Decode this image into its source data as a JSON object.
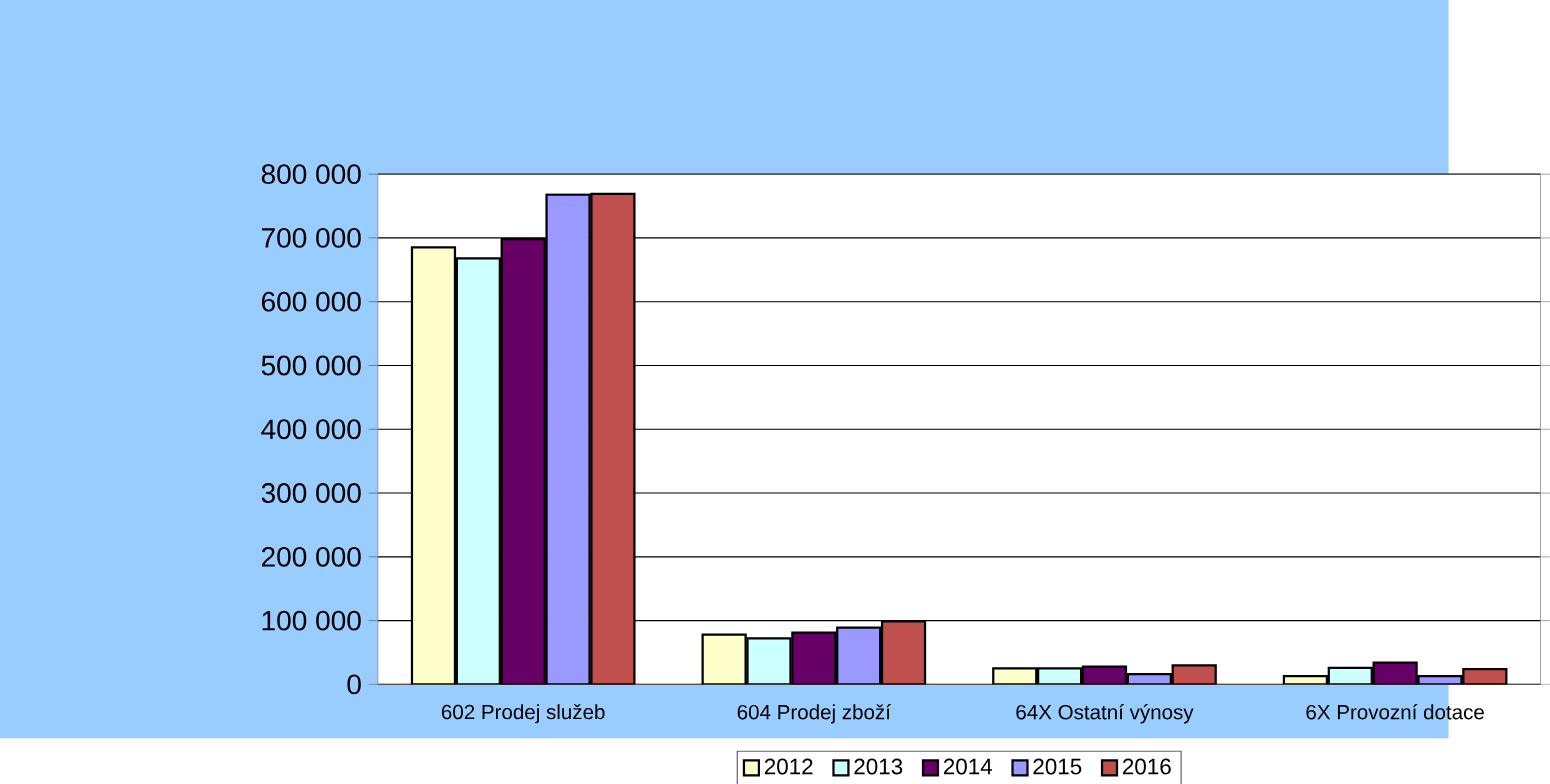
{
  "chart_data": {
    "type": "bar",
    "categories": [
      "602 Prodej služeb",
      "604 Prodej zboží",
      "64X Ostatní výnosy",
      "6X Provozní dotace"
    ],
    "series": [
      {
        "name": "2012",
        "color": "#ffffcc",
        "values": [
          685000,
          78000,
          25000,
          13000
        ]
      },
      {
        "name": "2013",
        "color": "#ccffff",
        "values": [
          668000,
          72000,
          25000,
          26000
        ]
      },
      {
        "name": "2014",
        "color": "#660066",
        "values": [
          698000,
          81000,
          28000,
          34000
        ]
      },
      {
        "name": "2015",
        "color": "#9999ff",
        "values": [
          768000,
          89000,
          16000,
          13000
        ]
      },
      {
        "name": "2016",
        "color": "#c0504d",
        "values": [
          769000,
          99000,
          30000,
          24000
        ]
      }
    ],
    "ylim": [
      0,
      800000
    ],
    "yticks": [
      {
        "value": 0,
        "label": "0"
      },
      {
        "value": 100000,
        "label": "100 000"
      },
      {
        "value": 200000,
        "label": "200 000"
      },
      {
        "value": 300000,
        "label": "300 000"
      },
      {
        "value": 400000,
        "label": "400 000"
      },
      {
        "value": 500000,
        "label": "500 000"
      },
      {
        "value": 600000,
        "label": "600 000"
      },
      {
        "value": 700000,
        "label": "700 000"
      },
      {
        "value": 800000,
        "label": "800 000"
      }
    ],
    "grid": "y",
    "legend": "bottom"
  }
}
